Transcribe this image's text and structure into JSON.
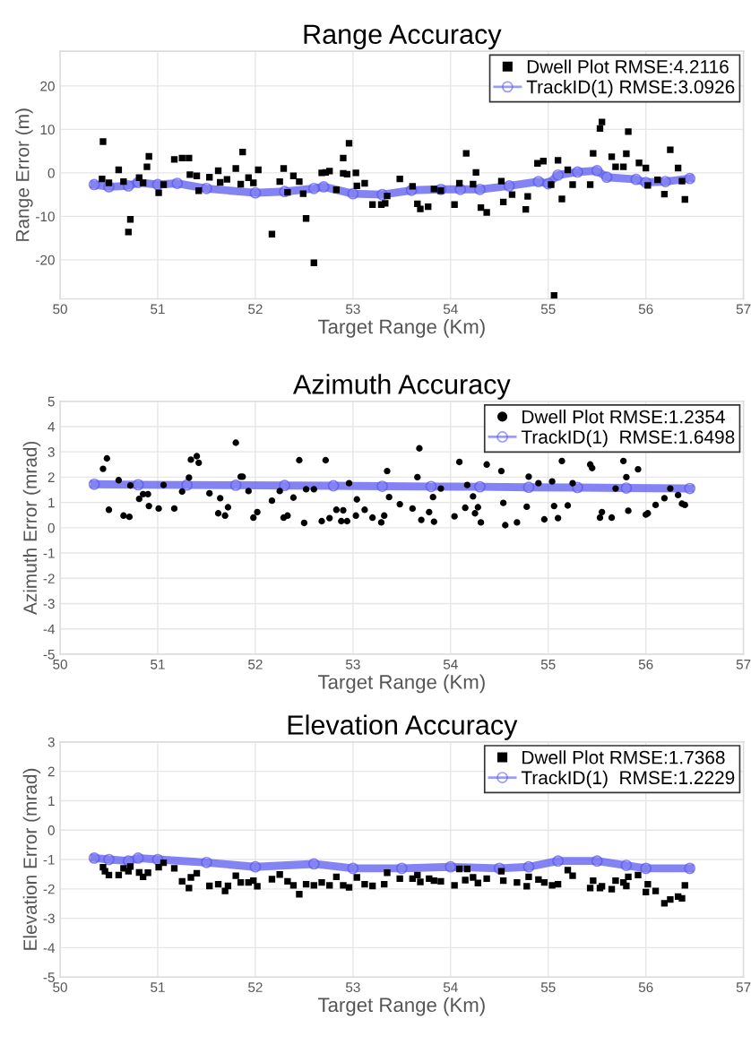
{
  "chart_data": [
    {
      "type": "scatter",
      "title": "Range Accuracy",
      "xlabel": "Target Range (Km)",
      "ylabel": "Range Error (m)",
      "xlim": [
        50,
        57
      ],
      "xticks": [
        50,
        51,
        52,
        53,
        54,
        55,
        56,
        57
      ],
      "ylim": [
        -29,
        28
      ],
      "yticks": [
        -20,
        -10,
        0,
        10,
        20
      ],
      "grid": true,
      "legend": "top right",
      "series": [
        {
          "name": "Dwell Plot RMSE:4.2116",
          "marker": "square",
          "color": "#000000",
          "x": [
            50.44,
            50.43,
            50.5,
            50.6,
            50.65,
            50.7,
            50.72,
            50.81,
            50.85,
            50.89,
            50.91,
            51.01,
            51.06,
            51.17,
            51.25,
            51.32,
            51.33,
            51.4,
            51.42,
            51.53,
            51.62,
            51.64,
            51.71,
            51.8,
            51.85,
            51.87,
            51.93,
            51.98,
            52.03,
            52.17,
            52.25,
            52.29,
            52.33,
            52.39,
            52.45,
            52.49,
            52.52,
            52.6,
            52.68,
            52.72,
            52.76,
            52.83,
            52.9,
            52.9,
            52.94,
            52.96,
            53.03,
            53.04,
            53.12,
            53.2,
            53.29,
            53.33,
            53.35,
            53.48,
            53.61,
            53.66,
            53.69,
            53.77,
            53.83,
            53.9,
            54.04,
            54.09,
            54.16,
            54.23,
            54.26,
            54.31,
            54.37,
            54.52,
            54.54,
            54.63,
            54.77,
            54.79,
            54.89,
            54.95,
            55.03,
            55.06,
            55.1,
            55.14,
            55.2,
            55.25,
            55.43,
            55.46,
            55.53,
            55.55,
            55.65,
            55.69,
            55.77,
            55.8,
            55.82,
            55.93,
            56.0,
            56.02,
            56.12,
            56.19,
            56.25,
            56.33,
            56.37,
            56.4
          ],
          "values": [
            7.2,
            -1.4,
            -2.3,
            0.7,
            -2.0,
            -13.6,
            -10.7,
            -1.1,
            -2.3,
            1.4,
            3.8,
            -4.6,
            -2.7,
            3.1,
            3.4,
            3.4,
            -0.4,
            -0.7,
            -4.1,
            -1.0,
            0.5,
            -2.2,
            -1.5,
            1.0,
            -2.6,
            4.8,
            -1.1,
            -2.3,
            0.7,
            -14.1,
            -2.0,
            1.0,
            -4.5,
            -0.7,
            -2.0,
            -4.8,
            -10.5,
            -20.7,
            0.0,
            0.1,
            0.4,
            -3.9,
            3.4,
            -0.1,
            -0.3,
            6.8,
            0.0,
            -3.0,
            -2.4,
            -7.3,
            -7.3,
            -7.0,
            -5.3,
            -1.4,
            -3.1,
            -7.1,
            -8.3,
            -7.8,
            -3.7,
            -4.1,
            -7.3,
            -2.4,
            4.5,
            -2.6,
            0.1,
            -8.0,
            -9.1,
            -1.9,
            -6.7,
            -5.0,
            -8.4,
            -5.4,
            2.2,
            2.7,
            -2.7,
            -28.2,
            2.9,
            -6.0,
            0.7,
            -2.7,
            -2.7,
            4.5,
            10.2,
            11.7,
            3.7,
            1.4,
            1.4,
            4.4,
            9.5,
            2.3,
            1.1,
            -2.9,
            -1.6,
            -4.9,
            5.3,
            1.1,
            -1.9,
            -6.1
          ]
        },
        {
          "name": "TrackID(1) RMSE:3.0926",
          "type": "line",
          "marker": "circle",
          "color": "#5a5af0",
          "x": [
            50.35,
            50.5,
            50.7,
            50.8,
            51.0,
            51.2,
            51.5,
            52.0,
            52.3,
            52.6,
            52.7,
            53.0,
            53.3,
            53.6,
            53.9,
            54.1,
            54.3,
            54.6,
            54.9,
            55.0,
            55.1,
            55.3,
            55.5,
            55.6,
            55.9,
            56.0,
            56.2,
            56.45
          ],
          "values": [
            -2.7,
            -3.2,
            -3.0,
            -2.2,
            -2.7,
            -2.4,
            -3.6,
            -4.6,
            -4.3,
            -3.6,
            -3.2,
            -4.8,
            -5.0,
            -4.0,
            -3.8,
            -3.8,
            -3.8,
            -3.0,
            -2.0,
            -2.5,
            -0.5,
            0.2,
            0.5,
            -1.0,
            -1.5,
            -2.2,
            -2.0,
            -1.3
          ]
        }
      ]
    },
    {
      "type": "scatter",
      "title": "Azimuth Accuracy",
      "xlabel": "Target Range (Km)",
      "ylabel": "Azimuth Error (mrad)",
      "xlim": [
        50,
        57
      ],
      "xticks": [
        50,
        51,
        52,
        53,
        54,
        55,
        56,
        57
      ],
      "ylim": [
        -5,
        5
      ],
      "yticks": [
        -5,
        -4,
        -3,
        -2,
        -1,
        0,
        1,
        2,
        3,
        4,
        5
      ],
      "grid": true,
      "legend": "top right",
      "series": [
        {
          "name": "Dwell Plot RMSE:1.2354",
          "marker": "circle",
          "color": "#000000",
          "x": [
            50.44,
            50.48,
            50.5,
            50.6,
            50.65,
            50.71,
            50.72,
            50.81,
            50.85,
            50.9,
            50.91,
            51.01,
            51.06,
            51.17,
            51.25,
            51.32,
            51.34,
            51.4,
            51.42,
            51.53,
            51.62,
            51.64,
            51.69,
            51.72,
            51.8,
            51.85,
            51.87,
            51.93,
            51.98,
            52.02,
            52.17,
            52.25,
            52.29,
            52.33,
            52.39,
            52.45,
            52.5,
            52.52,
            52.6,
            52.68,
            52.72,
            52.76,
            52.83,
            52.88,
            52.9,
            52.94,
            52.96,
            53.03,
            53.04,
            53.12,
            53.2,
            53.29,
            53.32,
            53.35,
            53.37,
            53.48,
            53.61,
            53.66,
            53.68,
            53.7,
            53.78,
            53.82,
            53.83,
            53.9,
            54.04,
            54.09,
            54.15,
            54.17,
            54.23,
            54.25,
            54.28,
            54.31,
            54.37,
            54.52,
            54.54,
            54.56,
            54.68,
            54.78,
            54.8,
            54.9,
            54.96,
            55.04,
            55.06,
            55.1,
            55.14,
            55.2,
            55.25,
            55.43,
            55.45,
            55.53,
            55.55,
            55.65,
            55.69,
            55.77,
            55.8,
            55.82,
            55.92,
            56.0,
            56.02,
            56.1,
            56.19,
            56.25,
            56.33,
            56.37,
            56.4
          ],
          "values": [
            2.33,
            2.74,
            0.71,
            1.88,
            0.48,
            0.43,
            1.67,
            1.14,
            1.33,
            1.33,
            0.86,
            0.76,
            1.69,
            0.76,
            1.43,
            1.98,
            2.69,
            2.83,
            2.57,
            1.36,
            0.57,
            1.17,
            0.48,
            0.81,
            3.36,
            2.02,
            2.02,
            1.45,
            0.4,
            0.62,
            1.07,
            1.45,
            0.4,
            0.48,
            1.19,
            2.67,
            0.19,
            1.52,
            1.52,
            0.26,
            2.67,
            0.38,
            0.71,
            0.26,
            0.69,
            0.26,
            1.76,
            0.48,
            1.12,
            0.71,
            0.4,
            0.21,
            0.48,
            2.24,
            1.21,
            0.93,
            0.76,
            2.0,
            3.14,
            0.31,
            0.62,
            1.21,
            0.24,
            1.55,
            0.45,
            2.6,
            0.79,
            1.69,
            1.24,
            0.57,
            0.81,
            0.21,
            2.5,
            2.24,
            0.98,
            0.1,
            0.21,
            0.83,
            2.02,
            1.76,
            0.33,
            1.83,
            0.86,
            0.38,
            2.64,
            0.88,
            1.76,
            2.5,
            2.36,
            0.4,
            0.62,
            0.4,
            1.55,
            2.64,
            2.0,
            0.67,
            2.31,
            0.52,
            0.57,
            0.9,
            1.17,
            1.55,
            1.29,
            0.95,
            0.9
          ]
        },
        {
          "name": "TrackID(1)  RMSE:1.6498",
          "type": "line",
          "marker": "circle",
          "color": "#5a5af0",
          "x": [
            50.35,
            50.8,
            51.3,
            51.8,
            52.3,
            52.8,
            53.3,
            53.8,
            54.3,
            54.8,
            55.3,
            55.8,
            56.45
          ],
          "values": [
            1.72,
            1.7,
            1.69,
            1.68,
            1.67,
            1.66,
            1.64,
            1.63,
            1.62,
            1.6,
            1.59,
            1.57,
            1.55
          ]
        }
      ]
    },
    {
      "type": "scatter",
      "title": "Elevation Accuracy",
      "xlabel": "Target Range (Km)",
      "ylabel": "Elevation Error (mrad)",
      "xlim": [
        50,
        57
      ],
      "xticks": [
        50,
        51,
        52,
        53,
        54,
        55,
        56,
        57
      ],
      "ylim": [
        -5,
        3
      ],
      "yticks": [
        -5,
        -4,
        -3,
        -2,
        -1,
        0,
        1,
        2,
        3
      ],
      "grid": true,
      "legend": "top right",
      "series": [
        {
          "name": "Dwell Plot RMSE:1.7368",
          "marker": "square",
          "color": "#000000",
          "x": [
            50.44,
            50.46,
            50.5,
            50.6,
            50.65,
            50.7,
            50.72,
            50.81,
            50.85,
            50.9,
            51.01,
            51.06,
            51.17,
            51.25,
            51.32,
            51.34,
            51.4,
            51.53,
            51.62,
            51.69,
            51.72,
            51.8,
            51.85,
            51.93,
            51.98,
            52.02,
            52.17,
            52.25,
            52.33,
            52.39,
            52.45,
            52.52,
            52.6,
            52.68,
            52.76,
            52.83,
            52.9,
            52.96,
            53.04,
            53.12,
            53.2,
            53.32,
            53.35,
            53.48,
            53.61,
            53.66,
            53.69,
            53.78,
            53.83,
            53.9,
            54.04,
            54.09,
            54.15,
            54.17,
            54.23,
            54.28,
            54.37,
            54.52,
            54.54,
            54.68,
            54.78,
            54.8,
            54.9,
            54.96,
            55.04,
            55.1,
            55.2,
            55.25,
            55.43,
            55.46,
            55.53,
            55.55,
            55.65,
            55.69,
            55.77,
            55.8,
            55.82,
            55.92,
            56.0,
            56.02,
            56.1,
            56.19,
            56.25,
            56.33,
            56.37,
            56.4
          ],
          "values": [
            -1.26,
            -1.4,
            -1.53,
            -1.53,
            -1.3,
            -1.4,
            -1.24,
            -1.44,
            -1.59,
            -1.45,
            -1.26,
            -1.11,
            -1.3,
            -1.74,
            -1.97,
            -1.61,
            -1.47,
            -1.9,
            -1.84,
            -2.07,
            -1.9,
            -1.55,
            -1.78,
            -1.78,
            -1.72,
            -1.91,
            -1.67,
            -1.51,
            -1.74,
            -1.88,
            -2.18,
            -1.84,
            -1.88,
            -1.78,
            -1.88,
            -1.59,
            -1.88,
            -1.95,
            -1.61,
            -1.84,
            -1.9,
            -1.84,
            -1.45,
            -1.65,
            -1.65,
            -1.53,
            -1.76,
            -1.65,
            -1.72,
            -1.74,
            -1.88,
            -1.32,
            -1.7,
            -1.32,
            -1.61,
            -1.8,
            -1.65,
            -1.4,
            -1.72,
            -1.78,
            -1.91,
            -1.59,
            -1.68,
            -1.78,
            -1.88,
            -1.84,
            -1.36,
            -1.55,
            -1.97,
            -1.72,
            -1.97,
            -1.91,
            -2.01,
            -1.72,
            -1.78,
            -1.9,
            -1.59,
            -1.53,
            -2.11,
            -1.84,
            -2.07,
            -2.49,
            -2.36,
            -2.26,
            -2.32,
            -1.88
          ]
        },
        {
          "name": "TrackID(1)  RMSE:1.2229",
          "type": "line",
          "marker": "circle",
          "color": "#5a5af0",
          "x": [
            50.35,
            50.5,
            50.7,
            50.8,
            51.0,
            51.5,
            52.0,
            52.6,
            53.0,
            53.5,
            54.0,
            54.5,
            54.8,
            55.1,
            55.5,
            55.8,
            56.0,
            56.45
          ],
          "values": [
            -0.95,
            -1.0,
            -1.05,
            -0.95,
            -1.0,
            -1.1,
            -1.25,
            -1.15,
            -1.3,
            -1.3,
            -1.25,
            -1.3,
            -1.25,
            -1.05,
            -1.05,
            -1.2,
            -1.3,
            -1.3
          ]
        }
      ]
    }
  ]
}
